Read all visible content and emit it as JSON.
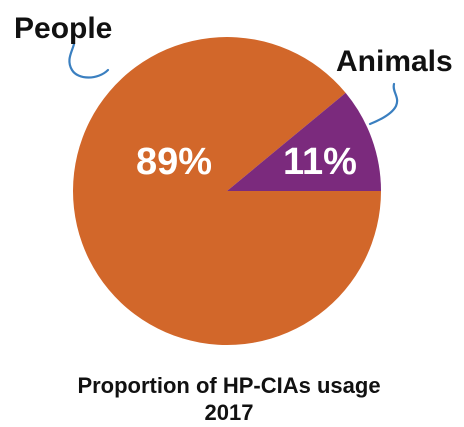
{
  "chart_data": {
    "type": "pie",
    "title_lines": [
      "Proportion of HP-CIAs usage",
      "2017"
    ],
    "categories": [
      "People",
      "Animals"
    ],
    "values": [
      89,
      11
    ],
    "value_labels": [
      "89%",
      "11%"
    ],
    "colors": [
      "#D2672A",
      "#7B2A7D"
    ],
    "leader_color": "#3A7FC0"
  }
}
